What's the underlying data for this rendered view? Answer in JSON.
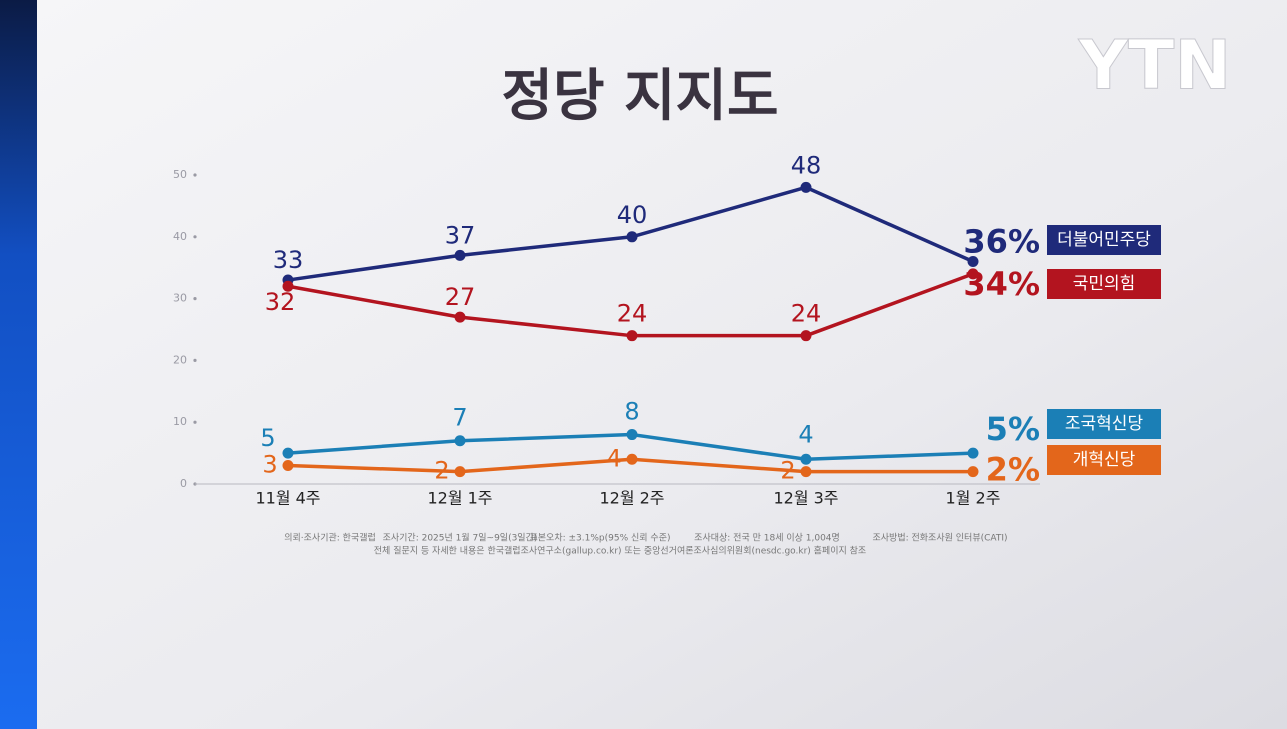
{
  "chart_data": {
    "type": "line",
    "title": "정당 지지도",
    "logo": "YTN",
    "categories": [
      "11월 4주",
      "12월 1주",
      "12월 2주",
      "12월 3주",
      "1월 2주"
    ],
    "ylim": [
      0,
      50
    ],
    "yticks": [
      0,
      10,
      20,
      30,
      40,
      50
    ],
    "series": [
      {
        "name": "더불어민주당",
        "color": "#1f2a7a",
        "values": [
          33,
          37,
          40,
          48,
          36
        ],
        "value_labels": [
          "33",
          "37",
          "40",
          "48",
          "36%"
        ]
      },
      {
        "name": "국민의힘",
        "color": "#b3141f",
        "values": [
          32,
          27,
          24,
          24,
          34
        ],
        "value_labels": [
          "32",
          "27",
          "24",
          "24",
          "34%"
        ]
      },
      {
        "name": "조국혁신당",
        "color": "#1b7fb6",
        "values": [
          5,
          7,
          8,
          4,
          5
        ],
        "value_labels": [
          "5",
          "7",
          "8",
          "4",
          "5%"
        ]
      },
      {
        "name": "개혁신당",
        "color": "#e3661b",
        "values": [
          3,
          2,
          4,
          2,
          2
        ],
        "value_labels": [
          "3",
          "2",
          "4",
          "2",
          "2%"
        ]
      }
    ],
    "notes": [
      "의뢰·조사기관: 한국갤럽",
      "조사기간: 2025년 1월 7일~9일(3일간)",
      "표본오차: ±3.1%p(95% 신뢰 수준)",
      "조사대상: 전국 만 18세 이상 1,004명",
      "조사방법: 전화조사원 인터뷰(CATI)",
      "전체 질문지 등 자세한 내용은 한국갤럽조사연구소(gallup.co.kr) 또는 중앙선거여론조사심의위원회(nesdc.go.kr) 홈페이지 참조"
    ]
  }
}
